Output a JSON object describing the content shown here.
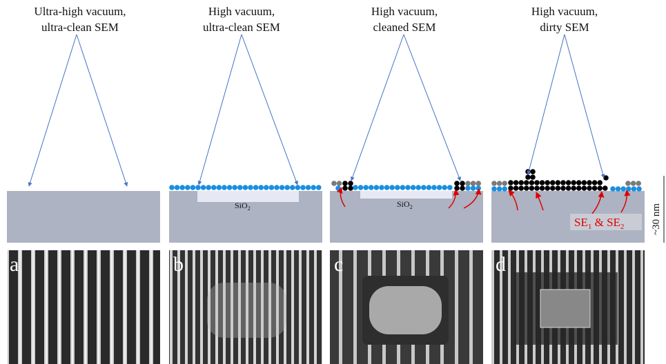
{
  "panels": [
    {
      "title": [
        "Ultra-high vacuum,",
        "ultra-clean SEM"
      ],
      "letter": "a"
    },
    {
      "title": [
        "High vacuum,",
        "ultra-clean SEM"
      ],
      "letter": "b"
    },
    {
      "title": [
        "High vacuum,",
        "cleaned SEM"
      ],
      "letter": "c"
    },
    {
      "title": [
        "High vacuum,",
        "dirty SEM"
      ],
      "letter": "d"
    }
  ],
  "labels": {
    "oxide": {
      "base": "SiO",
      "sub": "2"
    },
    "electrons": [
      "SE",
      "1",
      " & SE",
      "2"
    ],
    "scale": "~30 nm"
  }
}
